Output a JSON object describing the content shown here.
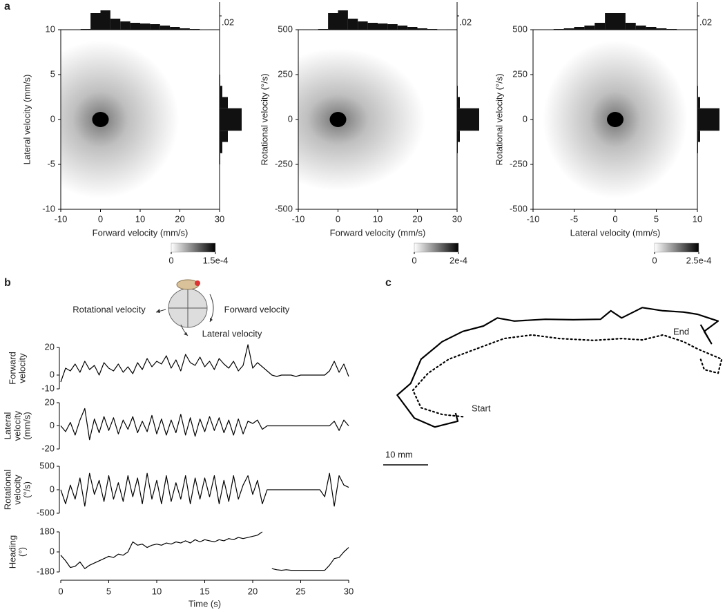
{
  "panels": [
    "a",
    "b",
    "c"
  ],
  "schematic": {
    "labels": [
      "Rotational velocity",
      "Forward velocity",
      "Lateral velocity"
    ]
  },
  "chart_data": [
    {
      "type": "heatmap",
      "xlabel": "Forward velocity (mm/s)",
      "ylabel": "Lateral velocity (mm/s)",
      "xlim": [
        -10,
        30
      ],
      "ylim": [
        -10,
        10
      ],
      "xticks": [
        -10,
        0,
        10,
        20,
        30
      ],
      "yticks": [
        -10,
        -5,
        0,
        5,
        10
      ],
      "peak": [
        0,
        0
      ],
      "spread": [
        9,
        4
      ],
      "x_marginal": {
        "bins": [
          -10,
          -7.5,
          -5,
          -2.5,
          0,
          2.5,
          5,
          7.5,
          10,
          12.5,
          15,
          17.5,
          20,
          22.5,
          25,
          27.5,
          30
        ],
        "counts": [
          0,
          0,
          0.0005,
          0.012,
          0.014,
          0.008,
          0.006,
          0.005,
          0.0045,
          0.004,
          0.003,
          0.002,
          0.001,
          0.0005,
          0.0002,
          0.0001
        ]
      },
      "y_marginal": {
        "bins": [
          -10,
          -8.75,
          -7.5,
          -6.25,
          -5,
          -3.75,
          -2.5,
          -1.25,
          0,
          1.25,
          2.5,
          3.75,
          5,
          6.25,
          7.5,
          8.75,
          10
        ],
        "counts": [
          0,
          0,
          0,
          0,
          0.0005,
          0.002,
          0.006,
          0.016,
          0.016,
          0.006,
          0.002,
          0.0005,
          0,
          0,
          0,
          0
        ]
      },
      "hist_tick": {
        "value": 0.02,
        "label": ".02"
      },
      "colorbar": {
        "clim": [
          0,
          0.00015
        ],
        "ticks": [
          0,
          {
            "value": 0.00015,
            "label": "1.5e-4"
          }
        ]
      }
    },
    {
      "type": "heatmap",
      "xlabel": "Forward velocity (mm/s)",
      "ylabel": "Rotational velocity (°/s)",
      "xlim": [
        -10,
        30
      ],
      "ylim": [
        -500,
        500
      ],
      "xticks": [
        -10,
        0,
        10,
        20,
        30
      ],
      "yticks": [
        -500,
        -250,
        0,
        250,
        500
      ],
      "peak": [
        0,
        0
      ],
      "spread": [
        10,
        180
      ],
      "x_marginal": {
        "bins": [
          -10,
          -7.5,
          -5,
          -2.5,
          0,
          2.5,
          5,
          7.5,
          10,
          12.5,
          15,
          17.5,
          20,
          22.5,
          25,
          27.5,
          30
        ],
        "counts": [
          0,
          0,
          0.0005,
          0.012,
          0.014,
          0.008,
          0.006,
          0.005,
          0.0045,
          0.004,
          0.003,
          0.002,
          0.001,
          0.0005,
          0.0002,
          0.0001
        ]
      },
      "y_marginal": {
        "bins": [
          -500,
          -437.5,
          -375,
          -312.5,
          -250,
          -187.5,
          -125,
          -62.5,
          0,
          62.5,
          125,
          187.5,
          250,
          312.5,
          375,
          437.5,
          500
        ],
        "counts": [
          0,
          0,
          0,
          0,
          0,
          0.0005,
          0.002,
          0.016,
          0.016,
          0.002,
          0.0005,
          0,
          0,
          0,
          0,
          0
        ]
      },
      "hist_tick": {
        "value": 0.02,
        "label": ".02"
      },
      "colorbar": {
        "clim": [
          0,
          0.0002
        ],
        "ticks": [
          0,
          {
            "value": 0.0002,
            "label": "2e-4"
          }
        ]
      }
    },
    {
      "type": "heatmap",
      "xlabel": "Lateral velocity (mm/s)",
      "ylabel": "Rotational velocity (°/s)",
      "xlim": [
        -10,
        10
      ],
      "ylim": [
        -500,
        500
      ],
      "xticks": [
        -10,
        -5,
        0,
        5,
        10
      ],
      "yticks": [
        -500,
        -250,
        0,
        250,
        500
      ],
      "peak": [
        0,
        0
      ],
      "spread": [
        4,
        200
      ],
      "x_marginal": {
        "bins": [
          -10,
          -8.75,
          -7.5,
          -6.25,
          -5,
          -3.75,
          -2.5,
          -1.25,
          0,
          1.25,
          2.5,
          3.75,
          5,
          6.25,
          7.5,
          8.75,
          10
        ],
        "counts": [
          0,
          0,
          0.0005,
          0.001,
          0.002,
          0.003,
          0.005,
          0.012,
          0.012,
          0.005,
          0.003,
          0.002,
          0.001,
          0.0005,
          0,
          0
        ]
      },
      "y_marginal": {
        "bins": [
          -500,
          -437.5,
          -375,
          -312.5,
          -250,
          -187.5,
          -125,
          -62.5,
          0,
          62.5,
          125,
          187.5,
          250,
          312.5,
          375,
          437.5,
          500
        ],
        "counts": [
          0,
          0,
          0,
          0,
          0,
          0.0005,
          0.002,
          0.016,
          0.016,
          0.002,
          0.0005,
          0,
          0,
          0,
          0,
          0
        ]
      },
      "hist_tick": {
        "value": 0.02,
        "label": ".02"
      },
      "colorbar": {
        "clim": [
          0,
          0.00025
        ],
        "ticks": [
          0,
          {
            "value": 0.00025,
            "label": "2.5e-4"
          }
        ]
      }
    },
    {
      "type": "line",
      "ylabel": [
        "Forward",
        "velocity"
      ],
      "color": "#000000",
      "xlim": [
        0,
        30
      ],
      "ylim": [
        -10,
        20
      ],
      "yticks": [
        -10,
        0,
        20
      ],
      "x": [
        0,
        0.5,
        1,
        1.5,
        2,
        2.5,
        3,
        3.5,
        4,
        4.5,
        5,
        5.5,
        6,
        6.5,
        7,
        7.5,
        8,
        8.5,
        9,
        9.5,
        10,
        10.5,
        11,
        11.5,
        12,
        12.5,
        13,
        13.5,
        14,
        14.5,
        15,
        15.5,
        16,
        16.5,
        17,
        17.5,
        18,
        18.5,
        19,
        19.5,
        20,
        20.5,
        21,
        21.5,
        22,
        22.5,
        23,
        23.5,
        24,
        24.5,
        25,
        25.5,
        26,
        26.5,
        27,
        27.5,
        28,
        28.5,
        29,
        29.5,
        30
      ],
      "values": [
        -5,
        5,
        3,
        8,
        2,
        10,
        4,
        7,
        0,
        9,
        5,
        3,
        8,
        2,
        6,
        1,
        9,
        4,
        12,
        6,
        10,
        8,
        14,
        5,
        11,
        3,
        15,
        9,
        7,
        13,
        6,
        10,
        4,
        12,
        8,
        5,
        10,
        3,
        7,
        22,
        5,
        9,
        6,
        3,
        0,
        -1,
        0,
        0,
        0,
        -1,
        0,
        0,
        0,
        0,
        0,
        0,
        3,
        10,
        2,
        8,
        -1
      ]
    },
    {
      "type": "line",
      "ylabel": [
        "Lateral",
        "velocity",
        "(mm/s)"
      ],
      "color": "#000000",
      "xlim": [
        0,
        30
      ],
      "ylim": [
        -20,
        20
      ],
      "yticks": [
        -20,
        0,
        20
      ],
      "x": [
        0,
        0.5,
        1,
        1.5,
        2,
        2.5,
        3,
        3.5,
        4,
        4.5,
        5,
        5.5,
        6,
        6.5,
        7,
        7.5,
        8,
        8.5,
        9,
        9.5,
        10,
        10.5,
        11,
        11.5,
        12,
        12.5,
        13,
        13.5,
        14,
        14.5,
        15,
        15.5,
        16,
        16.5,
        17,
        17.5,
        18,
        18.5,
        19,
        19.5,
        20,
        20.5,
        21,
        21.5,
        22,
        22.5,
        23,
        23.5,
        24,
        24.5,
        25,
        25.5,
        26,
        26.5,
        27,
        27.5,
        28,
        28.5,
        29,
        29.5,
        30
      ],
      "values": [
        0,
        -5,
        3,
        -8,
        5,
        15,
        -12,
        6,
        -6,
        8,
        -4,
        7,
        -7,
        5,
        -3,
        8,
        -6,
        4,
        -5,
        9,
        -7,
        6,
        -8,
        5,
        -6,
        10,
        -8,
        7,
        -9,
        6,
        -5,
        8,
        -4,
        7,
        -6,
        5,
        -8,
        6,
        -7,
        4,
        2,
        5,
        -3,
        0,
        0,
        0,
        0,
        0,
        0,
        0,
        0,
        0,
        0,
        0,
        0,
        0,
        0,
        4,
        -4,
        5,
        0
      ]
    },
    {
      "type": "line",
      "ylabel": [
        "Rotational",
        "velocity",
        "(°/s)"
      ],
      "color": "#000000",
      "xlim": [
        0,
        30
      ],
      "ylim": [
        -500,
        500
      ],
      "yticks": [
        -500,
        0,
        500
      ],
      "x": [
        0,
        0.5,
        1,
        1.5,
        2,
        2.5,
        3,
        3.5,
        4,
        4.5,
        5,
        5.5,
        6,
        6.5,
        7,
        7.5,
        8,
        8.5,
        9,
        9.5,
        10,
        10.5,
        11,
        11.5,
        12,
        12.5,
        13,
        13.5,
        14,
        14.5,
        15,
        15.5,
        16,
        16.5,
        17,
        17.5,
        18,
        18.5,
        19,
        19.5,
        20,
        20.5,
        21,
        21.5,
        22,
        22.5,
        23,
        23.5,
        24,
        24.5,
        25,
        25.5,
        26,
        26.5,
        27,
        27.5,
        28,
        28.5,
        29,
        29.5,
        30
      ],
      "values": [
        0,
        -300,
        100,
        -200,
        250,
        -350,
        350,
        -100,
        200,
        -250,
        300,
        -200,
        150,
        -250,
        300,
        -150,
        250,
        -300,
        350,
        -200,
        200,
        -300,
        300,
        -250,
        150,
        -200,
        300,
        -300,
        250,
        -200,
        250,
        -150,
        300,
        -300,
        200,
        -250,
        300,
        -200,
        100,
        300,
        -100,
        200,
        -300,
        0,
        0,
        0,
        0,
        0,
        0,
        0,
        0,
        0,
        0,
        0,
        0,
        -150,
        350,
        -350,
        300,
        100,
        50
      ]
    },
    {
      "type": "line",
      "ylabel": [
        "Heading",
        "(°)"
      ],
      "xlabel": "Time (s)",
      "color": "#000000",
      "xlim": [
        0,
        30
      ],
      "xticks": [
        0,
        5,
        10,
        15,
        20,
        25,
        30
      ],
      "ylim": [
        -180,
        180
      ],
      "yticks": [
        -180,
        0,
        180
      ],
      "x": [
        0,
        0.5,
        1,
        1.5,
        2,
        2.5,
        3,
        3.5,
        4,
        4.5,
        5,
        5.5,
        6,
        6.5,
        7,
        7.5,
        8,
        8.5,
        9,
        9.5,
        10,
        10.5,
        11,
        11.5,
        12,
        12.5,
        13,
        13.5,
        14,
        14.5,
        15,
        15.5,
        16,
        16.5,
        17,
        17.5,
        18,
        18.5,
        19,
        19.5,
        20,
        20.5,
        21,
        21.5,
        22,
        22.5,
        23,
        23.5,
        24,
        24.5,
        25,
        25.5,
        26,
        26.5,
        27,
        27.5,
        28,
        28.5,
        29,
        29.5,
        30
      ],
      "values": [
        -30,
        -80,
        -140,
        -130,
        -90,
        -150,
        -120,
        -100,
        -80,
        -60,
        -40,
        -50,
        -20,
        -30,
        0,
        90,
        60,
        70,
        40,
        60,
        70,
        60,
        80,
        70,
        90,
        80,
        100,
        80,
        110,
        90,
        110,
        100,
        90,
        110,
        100,
        120,
        110,
        130,
        120,
        130,
        140,
        150,
        180,
        null,
        -150,
        -160,
        -165,
        -160,
        -165,
        -165,
        -165,
        -165,
        -165,
        -165,
        -165,
        -165,
        -120,
        -60,
        -50,
        0,
        40
      ]
    },
    {
      "type": "trajectory",
      "annotations": [
        "Start",
        "End"
      ],
      "scale_bar": {
        "value": 10,
        "label": "10 mm"
      },
      "series": [
        {
          "style": "solid",
          "color": "#000000",
          "x": [
            -0.8,
            -0.3,
            -5.4,
            -10,
            -13.8,
            -10.8,
            -8.5,
            -3.8,
            0.8,
            5.4,
            8.5,
            12.3,
            19.2,
            25.4,
            31.5,
            33.8,
            36.2,
            40.8,
            45.4,
            50,
            53.1,
            57.7,
            54.6,
            56.2,
            53.8
          ],
          "y": [
            0.3,
            -1.5,
            -2.8,
            -0.8,
            4.3,
            6.9,
            12.3,
            16.2,
            18.5,
            19.7,
            21.5,
            20.8,
            21.2,
            21.1,
            21.2,
            23.1,
            21.5,
            23.8,
            23.1,
            22.8,
            22.3,
            20.8,
            18.5,
            15.8,
            20
          ]
        },
        {
          "style": "dotted",
          "color": "#000000",
          "x": [
            0.8,
            -3.8,
            -8.5,
            -10.3,
            -6.9,
            -2.3,
            3.8,
            10,
            16.2,
            22.3,
            30,
            36.2,
            40.8,
            45.4,
            50,
            53.1,
            58.5,
            57.7,
            54.6,
            53.8
          ],
          "y": [
            -0.5,
            0,
            1.5,
            5.4,
            9.2,
            12.3,
            14.6,
            16.9,
            17.7,
            16.9,
            16.5,
            16.9,
            16.6,
            17.7,
            16.2,
            14.6,
            12.3,
            9.2,
            10,
            12.3
          ]
        }
      ]
    }
  ]
}
